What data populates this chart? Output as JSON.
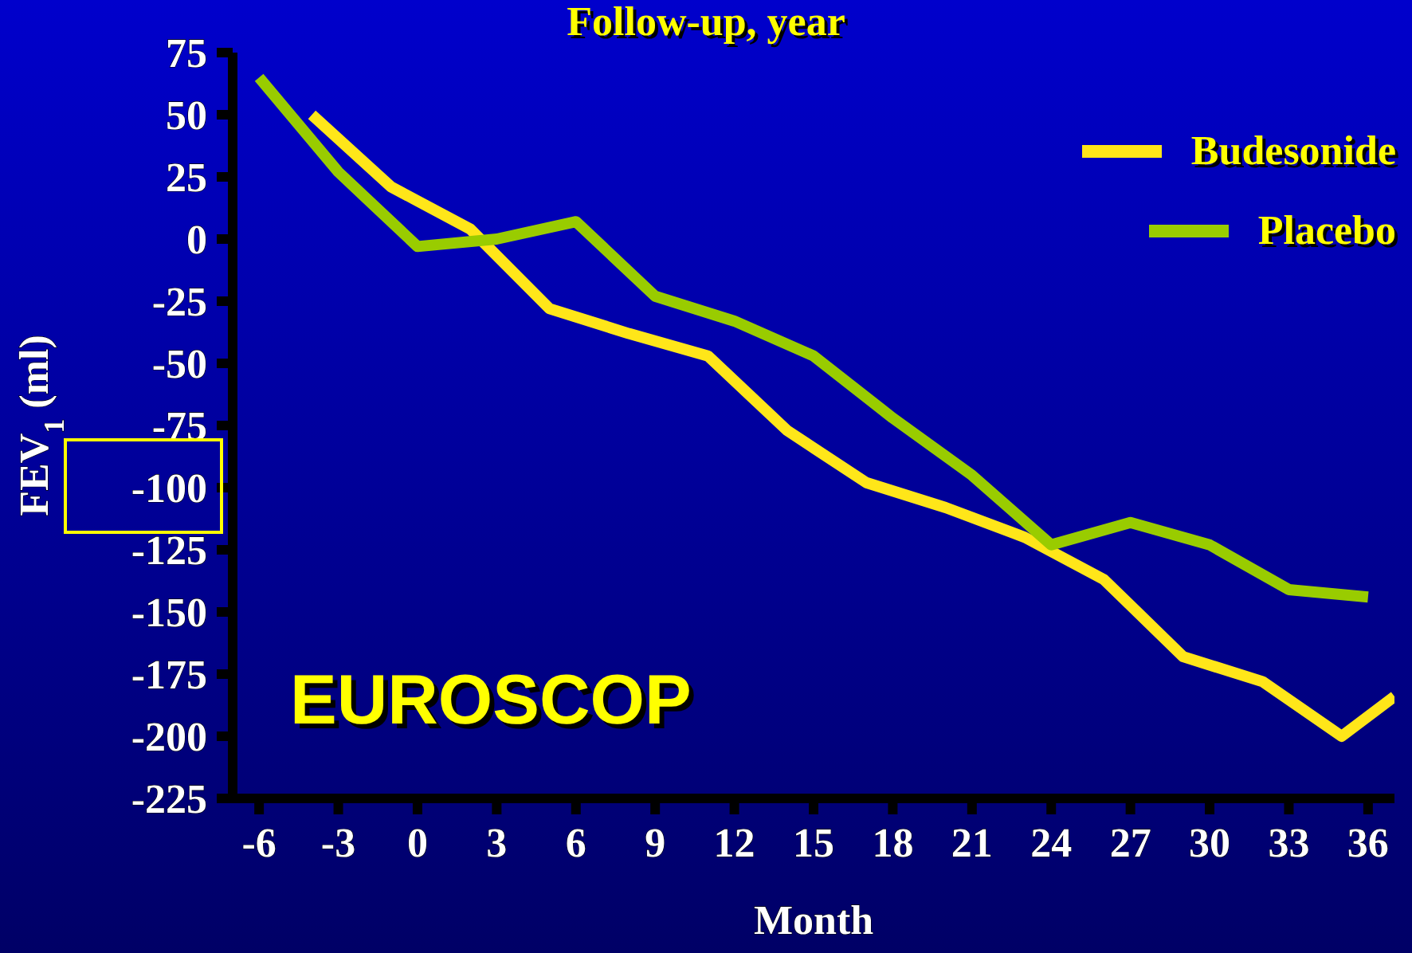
{
  "chart_data": {
    "type": "line",
    "title": "Follow-up, year",
    "xlabel": "Month",
    "ylabel": "FEV$_{1}$ (ml)",
    "annotations": [
      "EUROSCOP"
    ],
    "xlim": [
      -7,
      37
    ],
    "xticks": [
      -6,
      -3,
      0,
      3,
      6,
      9,
      12,
      15,
      18,
      21,
      24,
      27,
      30,
      33,
      36
    ],
    "ylim": [
      -225,
      75
    ],
    "yticks": [
      75,
      50,
      25,
      0,
      -25,
      -50,
      -75,
      -100,
      -125,
      -150,
      -175,
      -200,
      -225
    ],
    "grid": false,
    "legend": "top right",
    "marker": "none",
    "line_style": "solid",
    "series": [
      {
        "name": "Budesonide",
        "color": "#ffe619",
        "x": [
          -4,
          -1,
          2,
          5,
          8,
          11,
          14,
          17,
          20,
          23,
          26,
          29,
          32,
          35,
          37
        ],
        "values": [
          50,
          21,
          4,
          -28,
          -38,
          -47,
          -77,
          -98,
          -108,
          -120,
          -137,
          -168,
          -178,
          -200,
          -184
        ]
      },
      {
        "name": "Placebo",
        "color": "#99cc00",
        "x": [
          -6,
          -3,
          0,
          3,
          6,
          9,
          12,
          15,
          18,
          21,
          24,
          27,
          30,
          33,
          36
        ],
        "values": [
          65,
          27,
          -3,
          0,
          7,
          -23,
          -33,
          -47,
          -72,
          -95,
          -123,
          -114,
          -123,
          -141,
          -144
        ]
      }
    ]
  }
}
